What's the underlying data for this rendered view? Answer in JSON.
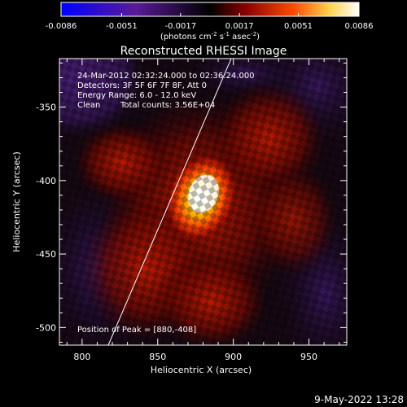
{
  "colorbar": {
    "ticks": [
      "-0.0086",
      "-0.0051",
      "-0.0017",
      "0.0017",
      "0.0051",
      "0.0086"
    ],
    "tick_values": [
      -0.0086,
      -0.0051,
      -0.0017,
      0.0017,
      0.0051,
      0.0086
    ],
    "range": [
      -0.0086,
      0.0086
    ],
    "units_prefix": "(photons cm",
    "units_exp1": "-2",
    "units_mid": " s",
    "units_exp2": "-1",
    "units_mid2": " asec",
    "units_exp3": "-2",
    "units_suffix": ")",
    "colors": [
      "#0000ff",
      "#5a1a9a",
      "#000000",
      "#8a0000",
      "#ff4a00",
      "#ffd24a",
      "#ffffff"
    ]
  },
  "title": "Reconstructed RHESSI Image",
  "info": {
    "line1": "24-Mar-2012 02:32:24.000 to 02:36:24.000",
    "line2": "Detectors: 3F 5F 6F 7F 8F, Att 0",
    "line3": "Energy Range: 6.0 - 12.0 keV",
    "line4_a": "Clean",
    "line4_b": "Total counts: 3.56E+04"
  },
  "peak": "Position of Peak = [880,-408]",
  "axes": {
    "xlabel": "Heliocentric X (arcsec)",
    "ylabel": "Heliocentric Y (arcsec)",
    "xlim": [
      785,
      975
    ],
    "ylim": [
      -512,
      -317
    ],
    "xticks": [
      "800",
      "850",
      "900",
      "950"
    ],
    "xtick_values": [
      800,
      850,
      900,
      950
    ],
    "yticks": [
      "-350",
      "-400",
      "-450",
      "-500"
    ],
    "ytick_values": [
      -350,
      -400,
      -450,
      -500
    ]
  },
  "footer_date": "9-May-2022 13:28",
  "chart_data": {
    "type": "heatmap",
    "title": "Reconstructed RHESSI Image",
    "xlabel": "Heliocentric X (arcsec)",
    "ylabel": "Heliocentric Y (arcsec)",
    "xlim": [
      785,
      975
    ],
    "ylim": [
      -512,
      -317
    ],
    "peak": [
      880,
      -408
    ],
    "value_range": [
      -0.0086,
      0.0086
    ]
  }
}
